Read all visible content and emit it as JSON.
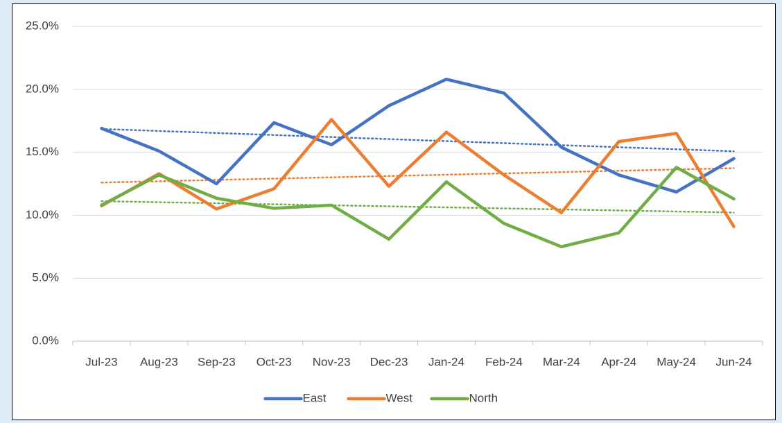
{
  "chart_data": {
    "type": "line",
    "categories": [
      "Jul-23",
      "Aug-23",
      "Sep-23",
      "Oct-23",
      "Nov-23",
      "Dec-23",
      "Jan-24",
      "Feb-24",
      "Mar-24",
      "Apr-24",
      "May-24",
      "Jun-24"
    ],
    "series": [
      {
        "name": "East",
        "color": "#4472c4",
        "values": [
          16.9,
          15.1,
          12.5,
          17.35,
          15.6,
          18.7,
          20.8,
          19.7,
          15.4,
          13.2,
          11.85,
          14.5
        ]
      },
      {
        "name": "West",
        "color": "#ed7d31",
        "values": [
          10.75,
          13.3,
          10.5,
          12.1,
          17.6,
          12.3,
          16.6,
          13.2,
          10.2,
          15.85,
          16.5,
          9.1
        ]
      },
      {
        "name": "North",
        "color": "#70ad47",
        "values": [
          10.8,
          13.2,
          11.35,
          10.55,
          10.8,
          8.1,
          12.65,
          9.35,
          7.5,
          8.6,
          13.8,
          11.3
        ]
      }
    ],
    "ylim": [
      0,
      25
    ],
    "yticks": [
      {
        "value": 0,
        "label": "0.0%"
      },
      {
        "value": 5,
        "label": "5.0%"
      },
      {
        "value": 10,
        "label": "10.0%"
      },
      {
        "value": 15,
        "label": "15.0%"
      },
      {
        "value": 20,
        "label": "20.0%"
      },
      {
        "value": 25,
        "label": "25.0%"
      }
    ],
    "grid": true,
    "trendline": true,
    "legend": "bottom"
  }
}
